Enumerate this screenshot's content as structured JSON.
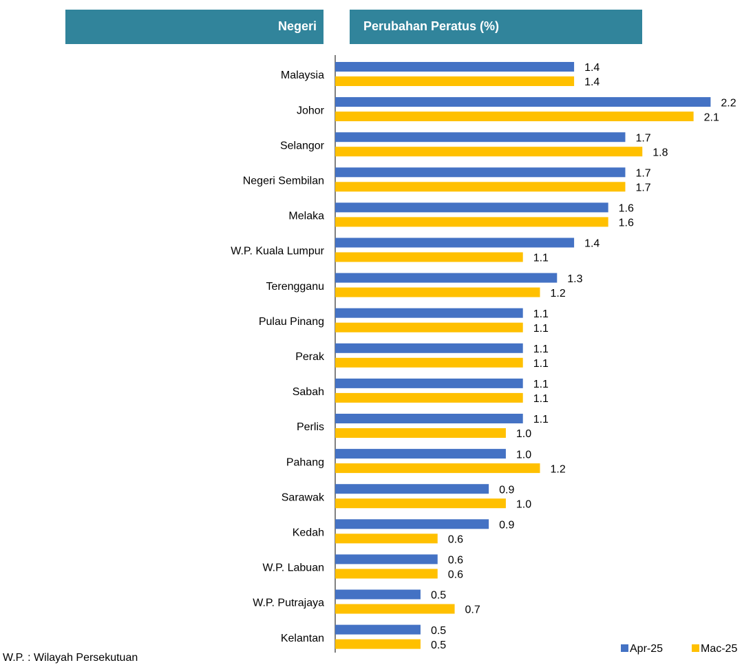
{
  "chart_data": {
    "type": "barh",
    "headers": [
      "Negeri",
      "Perubahan Peratus (%)"
    ],
    "note": "W.P. : Wilayah Persekutuan",
    "categories": [
      "Malaysia",
      "Johor",
      "Selangor",
      "Negeri Sembilan",
      "Melaka",
      "W.P. Kuala Lumpur",
      "Terengganu",
      "Pulau Pinang",
      "Perak",
      "Sabah",
      "Perlis",
      "Pahang",
      "Sarawak",
      "Kedah",
      "W.P. Labuan",
      "W.P. Putrajaya",
      "Kelantan"
    ],
    "series": [
      {
        "name": "Apr-25",
        "color": "#4472c4",
        "values": [
          1.4,
          2.2,
          1.7,
          1.7,
          1.6,
          1.4,
          1.3,
          1.1,
          1.1,
          1.1,
          1.1,
          1.0,
          0.9,
          0.9,
          0.6,
          0.5,
          0.5
        ],
        "value_labels": [
          "1.4",
          "2.2",
          "1.7",
          "1.7",
          "1.6",
          "1.4",
          "1.3",
          "1.1",
          "1.1",
          "1.1",
          "1.1",
          "1.0",
          "0.9",
          "0.9",
          "0.6",
          "0.5",
          "0.5"
        ]
      },
      {
        "name": "Mac-25",
        "color": "#ffc000",
        "values": [
          1.4,
          2.1,
          1.8,
          1.7,
          1.6,
          1.1,
          1.2,
          1.1,
          1.1,
          1.1,
          1.0,
          1.2,
          1.0,
          0.6,
          0.6,
          0.7,
          0.5
        ],
        "value_labels": [
          "1.4",
          "2.1",
          "1.8",
          "1.7",
          "1.6",
          "1.1",
          "1.2",
          "1.1",
          "1.1",
          "1.1",
          "1.0",
          "1.2",
          "1.0",
          "0.6",
          "0.6",
          "0.7",
          "0.5"
        ]
      }
    ],
    "xlim": [
      0,
      2.4
    ],
    "legend": "bottom-right"
  }
}
